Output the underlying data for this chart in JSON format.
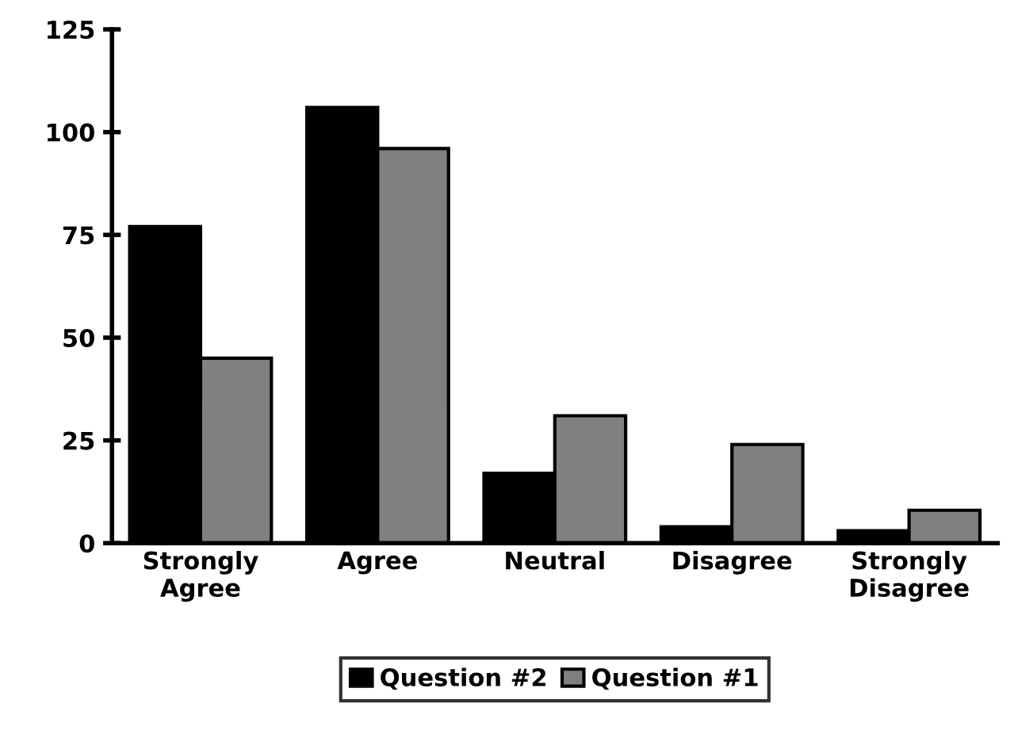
{
  "chart_data": {
    "type": "bar",
    "categories": [
      "Strongly\nAgree",
      "Agree",
      "Neutral",
      "Disagree",
      "Strongly\nDisagree"
    ],
    "series": [
      {
        "name": "Question #2",
        "color": "#000000",
        "values": [
          77,
          106,
          17,
          4,
          3
        ]
      },
      {
        "name": "Question #1",
        "color": "#808080",
        "values": [
          45,
          96,
          31,
          24,
          8
        ]
      }
    ],
    "ylim": [
      0,
      125
    ],
    "yticks": [
      0,
      25,
      50,
      75,
      100,
      125
    ],
    "grid": false,
    "legend": "bottom"
  }
}
